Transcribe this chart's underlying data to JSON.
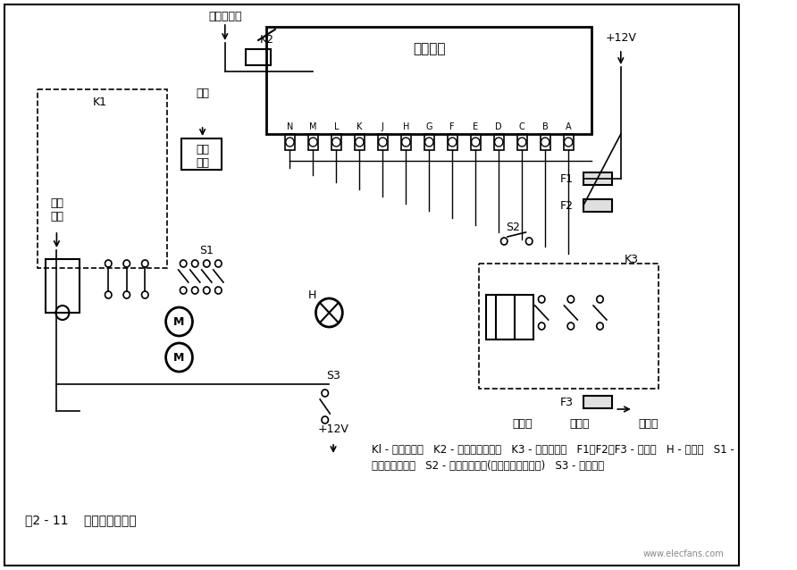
{
  "title": "图2 - 11    防盗系统电路图",
  "legend_line1": "Kl - 触发继电器   K2 - 启动中断继电器   K3 - 报警继电器   F1，F2，F3 - 熔断器   H - 指示灯   S1 -",
  "legend_line2": "门锁电动机开关   S2 - 后行李箱开关(当锁筒拉出时闭合)   S3 - 门锁开关",
  "bg_color": "#ffffff",
  "diagram_bg": "#f5f5f5",
  "watermark": "www.elecfans.com",
  "label_dianzi_mokuai": "电子模块",
  "label_fijian": "附件",
  "label_K2": "K2",
  "label_K1": "K1",
  "label_K3": "K3",
  "label_S1": "S1",
  "label_S2": "S2",
  "label_S3": "S3",
  "label_H": "H",
  "label_F1": "F1",
  "label_F2": "F2",
  "label_F3": "F3",
  "label_12V_top": "+12V",
  "label_12V_bottom": "+12V",
  "label_qudianhuokaiguan": "去点火开关",
  "label_dianhuo_mokuai": "点火\n模块",
  "label_qujueshi": "去驾\n驶室",
  "label_yangshengqi": "扬声器",
  "label_qianzhaoddeng": "前照灯",
  "label_quwaideng": "去外灯",
  "connector_labels": [
    "N",
    "M",
    "L",
    "K",
    "J",
    "H",
    "G",
    "F",
    "E",
    "D",
    "C",
    "B",
    "A"
  ]
}
